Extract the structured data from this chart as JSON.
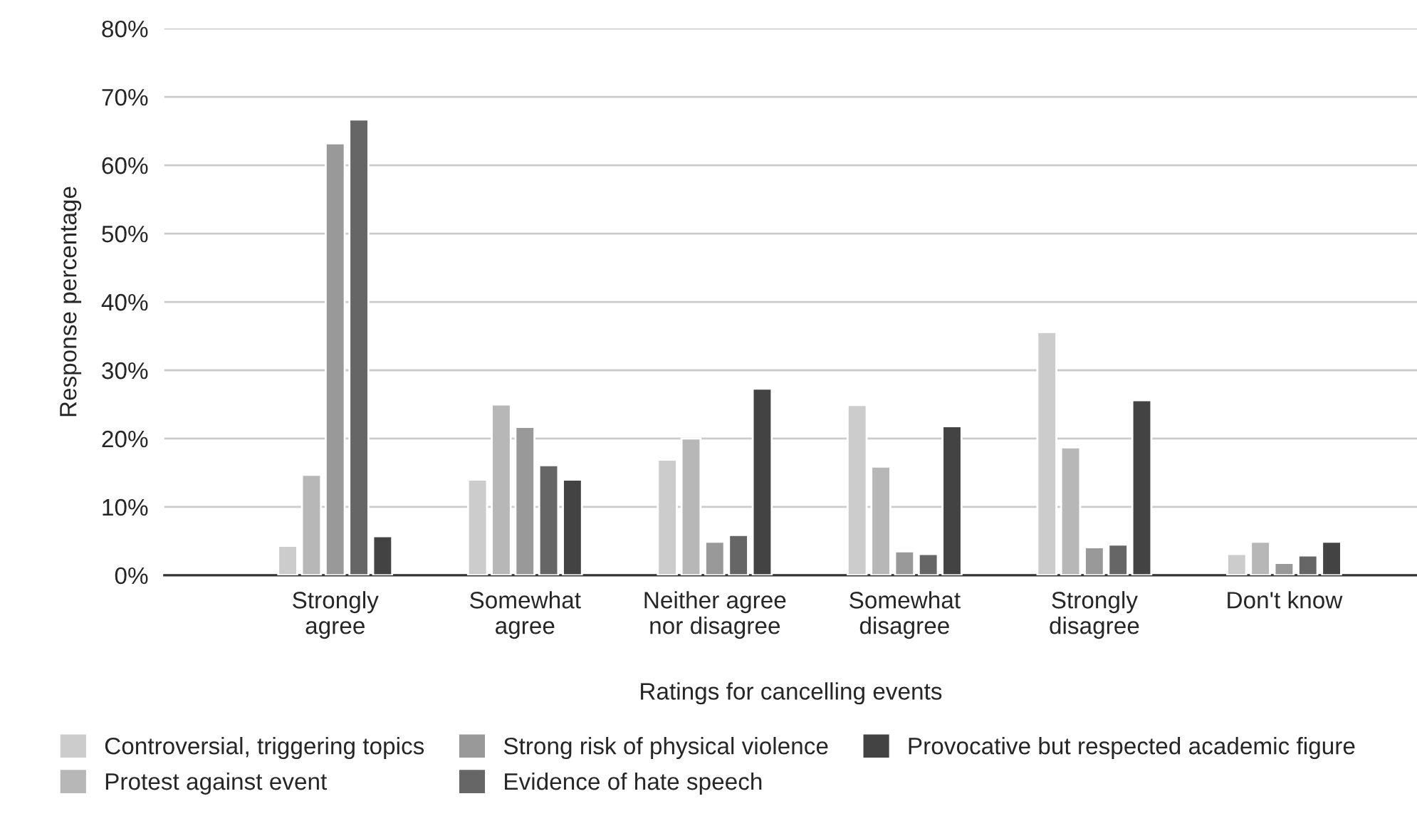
{
  "chart_data": {
    "type": "bar",
    "xlabel": "Ratings for cancelling events",
    "ylabel": "Response percentage",
    "categories": [
      "Strongly\nagree",
      "Somewhat\nagree",
      "Neither agree\nnor disagree",
      "Somewhat\ndisagree",
      "Strongly\ndisagree",
      "Don't know"
    ],
    "series": [
      {
        "name": "Controversial, triggering topics",
        "color": "#cccccc",
        "values": [
          4.3,
          14.0,
          16.9,
          24.9,
          35.6,
          3.1
        ]
      },
      {
        "name": "Protest against event",
        "color": "#b7b7b7",
        "values": [
          14.7,
          25.0,
          20.0,
          15.9,
          18.7,
          4.9
        ]
      },
      {
        "name": "Strong risk of physical violence",
        "color": "#999999",
        "values": [
          63.2,
          21.7,
          4.9,
          3.5,
          4.1,
          1.8
        ]
      },
      {
        "name": "Evidence of hate speech",
        "color": "#666666",
        "values": [
          66.7,
          16.1,
          5.9,
          3.1,
          4.5,
          2.9
        ]
      },
      {
        "name": "Provocative but respected academic figure",
        "color": "#434343",
        "values": [
          5.7,
          14.0,
          27.3,
          21.8,
          25.6,
          4.9
        ]
      }
    ],
    "ylim": [
      0,
      80
    ],
    "yticks": [
      {
        "value": 0,
        "label": "0%"
      },
      {
        "value": 10,
        "label": "10%"
      },
      {
        "value": 20,
        "label": "20%"
      },
      {
        "value": 30,
        "label": "30%"
      },
      {
        "value": 40,
        "label": "40%"
      },
      {
        "value": 50,
        "label": "50%"
      },
      {
        "value": 60,
        "label": "60%"
      },
      {
        "value": 70,
        "label": "70%"
      },
      {
        "value": 80,
        "label": "80%"
      }
    ],
    "grid": "y",
    "legend": "bottom"
  }
}
